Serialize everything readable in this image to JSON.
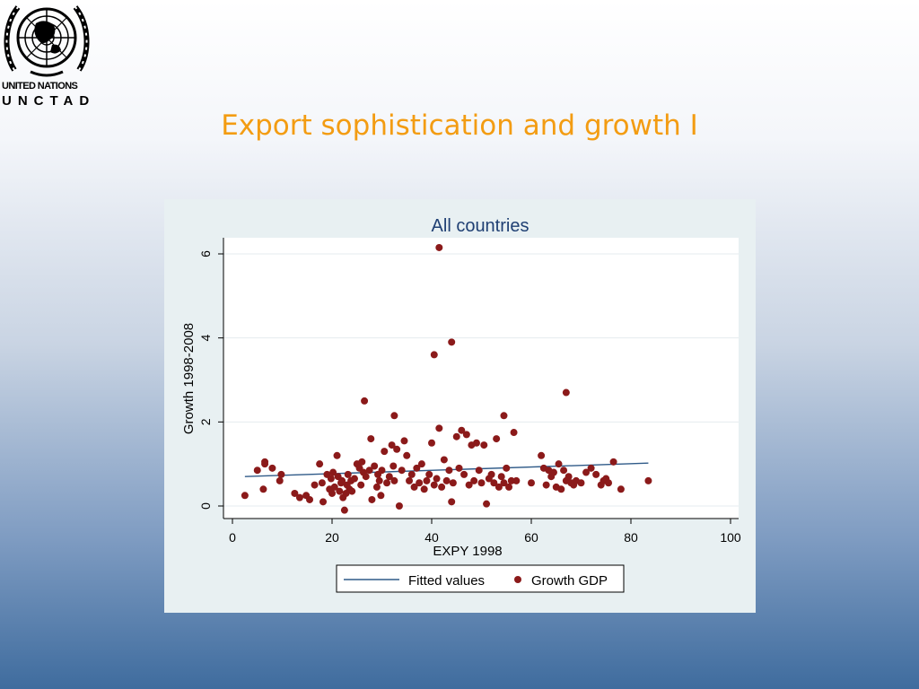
{
  "logo": {
    "organization": "UNITED NATIONS",
    "unit": "UNCTAD",
    "emblem_icon": "un-emblem-icon"
  },
  "slide": {
    "title": "Export sophistication and growth I"
  },
  "chart_data": {
    "type": "scatter",
    "title": "All countries",
    "xlabel": "EXPY 1998",
    "ylabel": "Growth 1998-2008",
    "xlim": [
      0,
      100
    ],
    "ylim": [
      0,
      6
    ],
    "x_ticks": [
      0,
      20,
      40,
      60,
      80,
      100
    ],
    "y_ticks": [
      0,
      2,
      4,
      6
    ],
    "grid": "horizontal",
    "legend_position": "bottom",
    "colors": {
      "points": "#8b1a1a",
      "fitted": "#2f5a88",
      "plot_bg": "#ffffff",
      "panel_bg": "#e8f0f2",
      "title": "#1f3f73"
    },
    "series": [
      {
        "name": "Growth GDP",
        "kind": "points",
        "x": [
          2.5,
          5,
          6.2,
          6.5,
          6.5,
          8,
          9.5,
          9.8,
          12.5,
          13.5,
          14.8,
          15.5,
          16.5,
          17.5,
          18,
          18.2,
          19,
          19.5,
          19.8,
          20,
          20.2,
          20.5,
          21,
          21.2,
          21.5,
          21.8,
          22,
          22.2,
          22.5,
          22.8,
          23,
          23.2,
          23.5,
          23.8,
          24,
          24.5,
          25,
          25.5,
          25.8,
          26,
          26.3,
          26.8,
          27.5,
          27.8,
          28,
          28.5,
          29,
          29.2,
          29.5,
          29.8,
          30,
          30.5,
          31,
          31.5,
          32,
          32.3,
          32.5,
          33,
          33.5,
          34,
          34.5,
          35,
          35.5,
          36,
          36.5,
          37,
          37.5,
          38,
          38.5,
          39,
          39.5,
          40,
          40.5,
          41,
          41.5,
          42,
          42.5,
          43,
          43.5,
          44,
          44.3,
          45,
          45.5,
          46,
          46.5,
          47,
          47.5,
          48,
          48.5,
          49,
          49.5,
          50,
          50.5,
          51,
          51.5,
          52,
          52.5,
          53,
          53.5,
          54,
          54.5,
          55,
          55.5,
          56,
          56.5,
          57,
          60,
          62,
          62.5,
          63,
          63.5,
          64,
          64.5,
          65,
          65.5,
          66,
          66.5,
          67,
          67.5,
          68,
          68.5,
          69,
          70,
          71,
          72,
          73,
          74,
          74.5,
          75,
          75.5,
          76.5,
          78,
          83.5,
          40.5,
          41.5,
          44,
          26.5,
          67,
          32.5,
          54.5
        ],
        "y": [
          0.25,
          0.85,
          0.4,
          1.05,
          1.0,
          0.9,
          0.6,
          0.75,
          0.3,
          0.2,
          0.25,
          0.15,
          0.5,
          1.0,
          0.55,
          0.1,
          0.75,
          0.4,
          0.65,
          0.3,
          0.8,
          0.45,
          1.2,
          0.7,
          0.35,
          0.55,
          0.6,
          0.2,
          -0.1,
          0.3,
          0.5,
          0.75,
          0.4,
          0.6,
          0.35,
          0.65,
          1.0,
          0.9,
          0.5,
          1.05,
          0.8,
          0.7,
          0.85,
          1.6,
          0.15,
          0.95,
          0.45,
          0.75,
          0.6,
          0.25,
          0.85,
          1.3,
          0.55,
          0.7,
          1.45,
          0.95,
          0.6,
          1.35,
          0.0,
          0.85,
          1.55,
          1.2,
          0.6,
          0.75,
          0.45,
          0.9,
          0.55,
          1.0,
          0.4,
          0.6,
          0.75,
          1.5,
          0.5,
          0.65,
          1.85,
          0.45,
          1.1,
          0.6,
          0.85,
          0.1,
          0.55,
          1.65,
          0.9,
          1.8,
          0.75,
          1.7,
          0.5,
          1.45,
          0.6,
          1.5,
          0.85,
          0.55,
          1.45,
          0.05,
          0.65,
          0.75,
          0.55,
          1.6,
          0.45,
          0.7,
          2.15,
          0.9,
          0.45,
          0.6,
          1.75,
          0.6,
          0.55,
          1.2,
          0.9,
          0.5,
          0.85,
          0.7,
          0.8,
          0.45,
          1.0,
          0.4,
          0.85,
          0.6,
          0.7,
          0.55,
          0.5,
          0.6,
          0.55,
          0.8,
          0.9,
          0.75,
          0.5,
          0.6,
          0.65,
          0.55,
          1.05,
          0.4,
          0.6,
          3.6,
          6.15,
          3.9,
          2.5,
          2.7,
          2.15,
          0.55
        ]
      },
      {
        "name": "Fitted values",
        "kind": "line",
        "x": [
          2.5,
          83.5
        ],
        "y": [
          0.7,
          1.02
        ]
      }
    ]
  }
}
